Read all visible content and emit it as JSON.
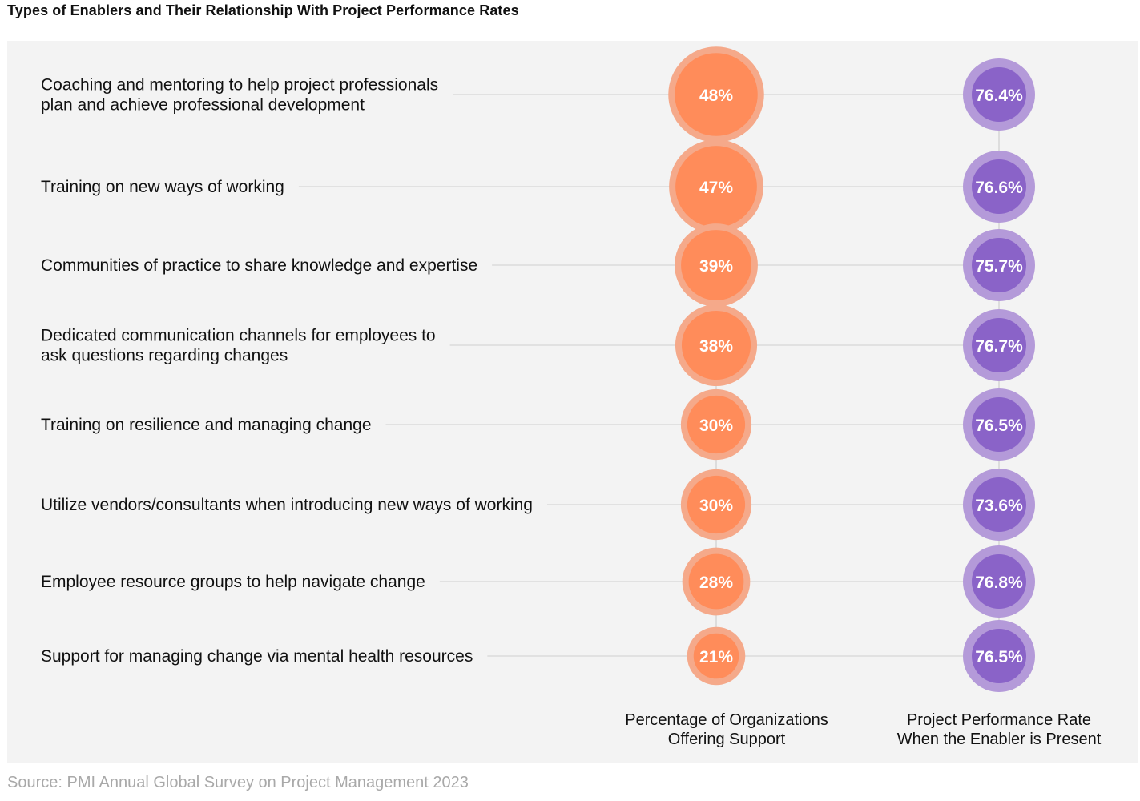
{
  "title": "Types of Enablers and Their Relationship With Project Performance Rates",
  "source": "Source: PMI Annual Global Survey on Project Management 2023",
  "colors": {
    "panel": "#f3f3f3",
    "orange_fill": "#ff8c5a",
    "orange_ring": "#f5a98a",
    "purple_fill": "#8a63c8",
    "purple_ring": "#b49ad9",
    "connector": "#d6d6d6"
  },
  "chart_data": {
    "type": "bubble-table",
    "title": "Types of Enablers and Their Relationship With Project Performance Rates",
    "columns": [
      {
        "key": "pct_orgs",
        "label_lines": [
          "Percentage of Organizations",
          "Offering Support"
        ],
        "color": "#ff8c5a"
      },
      {
        "key": "perf_rate",
        "label_lines": [
          "Project Performance Rate",
          "When the Enabler is Present"
        ],
        "color": "#8a63c8"
      }
    ],
    "rows": [
      {
        "label_lines": [
          "Coaching and mentoring to help project professionals",
          "plan and achieve professional development"
        ],
        "pct_orgs": 48,
        "pct_label": "48%",
        "perf_rate": 76.4,
        "perf_label": "76.4%"
      },
      {
        "label_lines": [
          "Training on new ways of working"
        ],
        "pct_orgs": 47,
        "pct_label": "47%",
        "perf_rate": 76.6,
        "perf_label": "76.6%"
      },
      {
        "label_lines": [
          "Communities of practice to share knowledge and expertise"
        ],
        "pct_orgs": 39,
        "pct_label": "39%",
        "perf_rate": 75.7,
        "perf_label": "75.7%"
      },
      {
        "label_lines": [
          "Dedicated communication channels for employees to",
          "ask questions regarding changes"
        ],
        "pct_orgs": 38,
        "pct_label": "38%",
        "perf_rate": 76.7,
        "perf_label": "76.7%"
      },
      {
        "label_lines": [
          "Training on resilience and managing change"
        ],
        "pct_orgs": 30,
        "pct_label": "30%",
        "perf_rate": 76.5,
        "perf_label": "76.5%"
      },
      {
        "label_lines": [
          "Utilize vendors/consultants when introducing new ways of working"
        ],
        "pct_orgs": 30,
        "pct_label": "30%",
        "perf_rate": 73.6,
        "perf_label": "73.6%"
      },
      {
        "label_lines": [
          "Employee resource groups to help navigate change"
        ],
        "pct_orgs": 28,
        "pct_label": "28%",
        "perf_rate": 76.8,
        "perf_label": "76.8%"
      },
      {
        "label_lines": [
          "Support for managing change via mental health resources"
        ],
        "pct_orgs": 21,
        "pct_label": "21%",
        "perf_rate": 76.5,
        "perf_label": "76.5%"
      }
    ]
  }
}
